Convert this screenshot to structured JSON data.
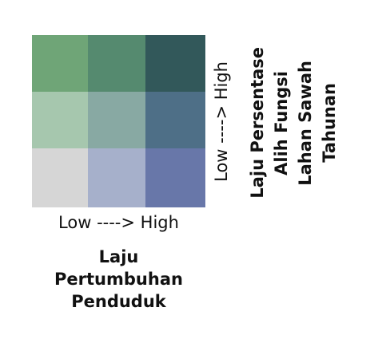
{
  "legend": {
    "x_title_lines": [
      "Laju",
      "Pertumbuhan",
      "Penduduk"
    ],
    "x_range": "Low ----> High",
    "y_title_lines": [
      "Laju Persentase",
      "Alih Fungsi",
      "Lahan Sawah",
      "Tahunan"
    ],
    "y_range": "Low ----> High",
    "grid": [
      [
        "#6fa577",
        "#558a6f",
        "#32585a"
      ],
      [
        "#a6c7ae",
        "#88a9a3",
        "#4e6f87"
      ],
      [
        "#d6d6d6",
        "#a6b0cb",
        "#6877a9"
      ]
    ]
  }
}
